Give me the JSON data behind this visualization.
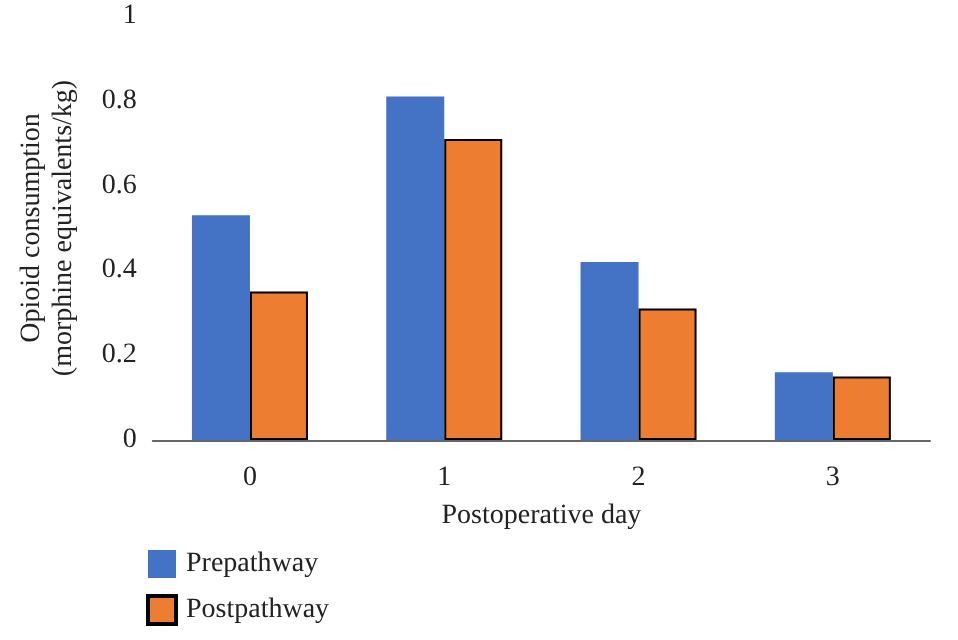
{
  "chart_data": {
    "type": "bar",
    "xlabel": "Postoperative day",
    "ylabel": "Opioid consumption\n(morphine equivalents/kg)",
    "categories": [
      "0",
      "1",
      "2",
      "3"
    ],
    "series": [
      {
        "name": "Prepathway",
        "color": "#4472c4",
        "values": [
          0.53,
          0.81,
          0.42,
          0.16
        ]
      },
      {
        "name": "Postpathway",
        "color": "#ed7d31",
        "values": [
          0.35,
          0.71,
          0.31,
          0.15
        ]
      }
    ],
    "ylim": [
      0,
      1
    ],
    "yticks": [
      0,
      0.2,
      0.4,
      0.6,
      0.8,
      1
    ],
    "grid": false,
    "legend": "bottom left"
  }
}
